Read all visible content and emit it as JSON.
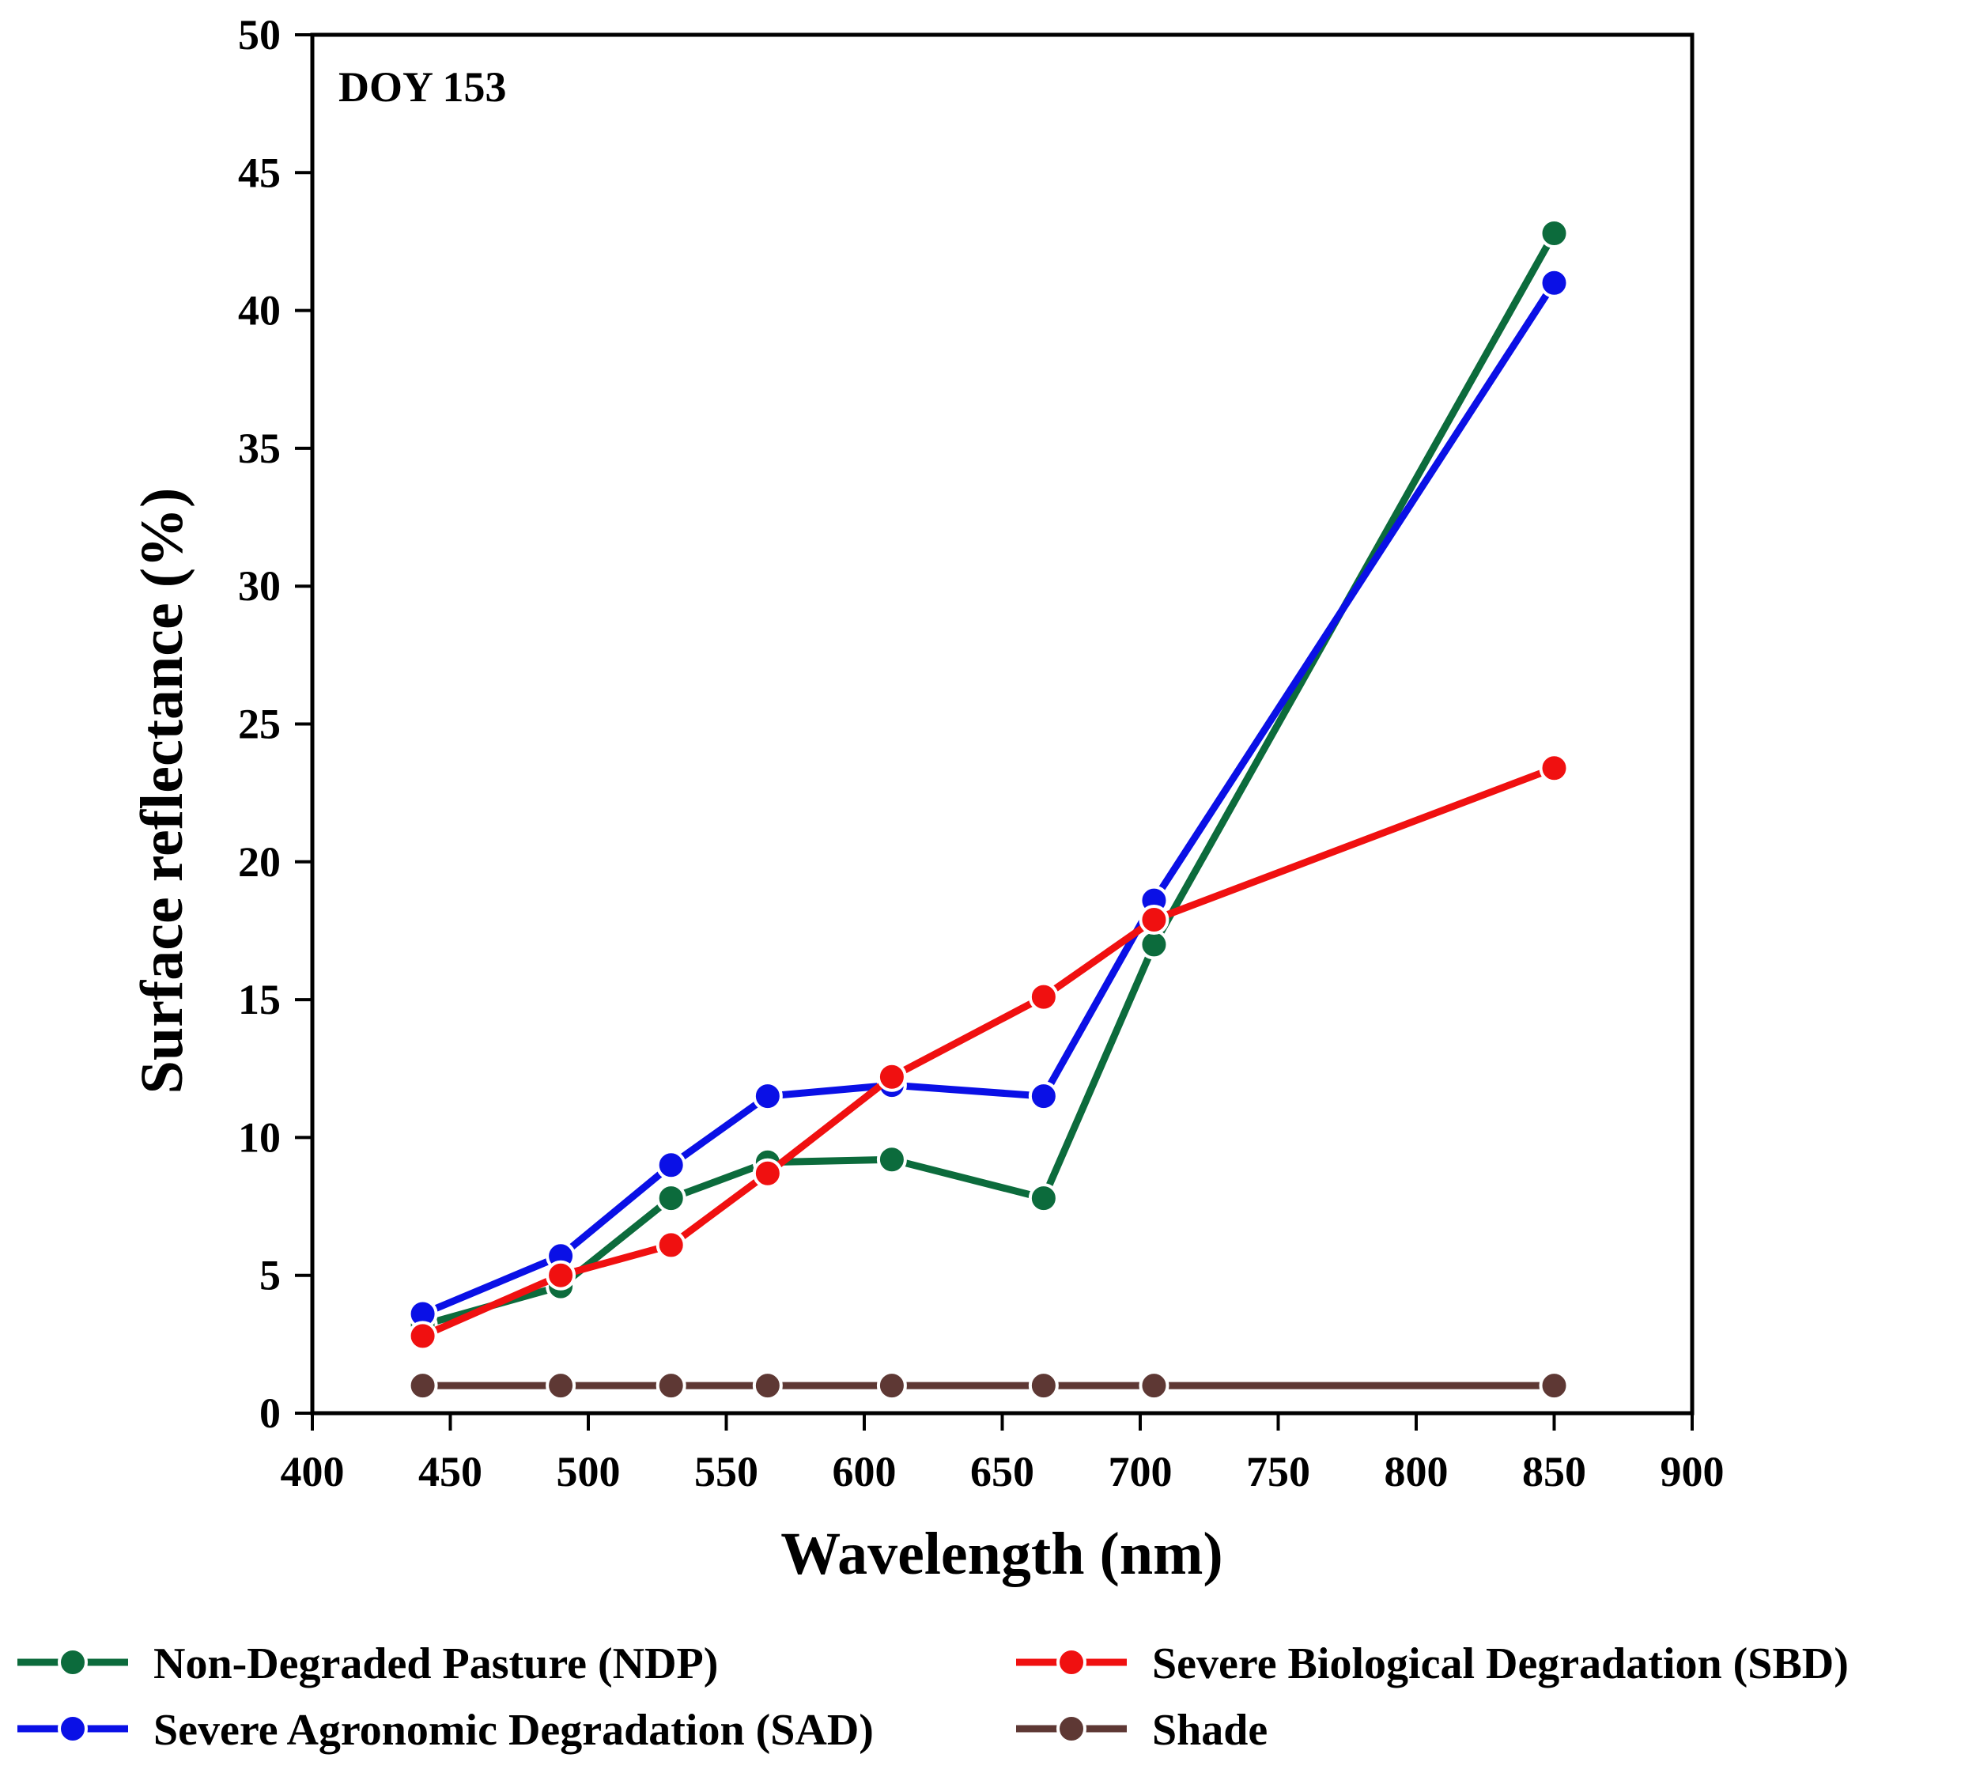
{
  "chart_data": {
    "type": "line",
    "title": "",
    "annotation": "DOY 153",
    "xlabel": "Wavelength (nm)",
    "ylabel": "Surface reflectance (%)",
    "xlim": [
      400,
      900
    ],
    "ylim": [
      0,
      50
    ],
    "xticks": [
      400,
      450,
      500,
      550,
      600,
      650,
      700,
      750,
      800,
      850,
      900
    ],
    "yticks": [
      0,
      5,
      10,
      15,
      20,
      25,
      30,
      35,
      40,
      45,
      50
    ],
    "grid": false,
    "legend_position": "bottom",
    "x": [
      440,
      490,
      530,
      565,
      610,
      665,
      705,
      850
    ],
    "series": [
      {
        "name": "Non-Degraded Pasture (NDP)",
        "color": "#0c6b3c",
        "values": [
          3.2,
          4.6,
          7.8,
          9.1,
          9.2,
          7.8,
          17.0,
          42.8
        ]
      },
      {
        "name": "Severe Agronomic Degradation (SAD)",
        "color": "#0a10e6",
        "values": [
          3.6,
          5.7,
          9.0,
          11.5,
          11.9,
          11.5,
          18.6,
          41.0
        ]
      },
      {
        "name": "Severe Biological Degradation (SBD)",
        "color": "#f01010",
        "values": [
          2.8,
          5.0,
          6.1,
          8.7,
          12.2,
          15.1,
          17.9,
          23.4
        ]
      },
      {
        "name": "Shade",
        "color": "#5e3834",
        "values": [
          1.0,
          1.0,
          1.0,
          1.0,
          1.0,
          1.0,
          1.0,
          1.0
        ]
      }
    ]
  }
}
